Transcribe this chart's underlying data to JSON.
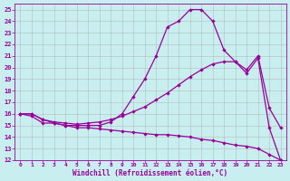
{
  "xlabel": "Windchill (Refroidissement éolien,°C)",
  "background_color": "#c8eef0",
  "grid_color": "#b0b0b0",
  "line_color": "#990099",
  "xlim": [
    -0.5,
    23.5
  ],
  "ylim": [
    12,
    25.5
  ],
  "xticks": [
    0,
    1,
    2,
    3,
    4,
    5,
    6,
    7,
    8,
    9,
    10,
    11,
    12,
    13,
    14,
    15,
    16,
    17,
    18,
    19,
    20,
    21,
    22,
    23
  ],
  "yticks": [
    12,
    13,
    14,
    15,
    16,
    17,
    18,
    19,
    20,
    21,
    22,
    23,
    24,
    25
  ],
  "line1_x": [
    0,
    1,
    2,
    3,
    4,
    5,
    6,
    7,
    8,
    9,
    10,
    11,
    12,
    13,
    14,
    15,
    16,
    17,
    18,
    19,
    20,
    21,
    22,
    23
  ],
  "line1_y": [
    16.0,
    15.8,
    15.2,
    15.2,
    15.0,
    15.0,
    15.0,
    15.0,
    15.3,
    16.0,
    17.5,
    19.0,
    21.0,
    23.5,
    24.0,
    25.0,
    25.0,
    24.0,
    21.5,
    20.5,
    19.5,
    20.8,
    14.8,
    12.0
  ],
  "line2_x": [
    0,
    1,
    2,
    3,
    4,
    5,
    6,
    7,
    8,
    9,
    10,
    11,
    12,
    13,
    14,
    15,
    16,
    17,
    18,
    19,
    20,
    21,
    22,
    23
  ],
  "line2_y": [
    16.0,
    16.0,
    15.5,
    15.3,
    15.2,
    15.1,
    15.2,
    15.3,
    15.5,
    15.8,
    16.2,
    16.6,
    17.2,
    17.8,
    18.5,
    19.2,
    19.8,
    20.3,
    20.5,
    20.5,
    19.8,
    21.0,
    16.5,
    14.8
  ],
  "line3_x": [
    0,
    1,
    2,
    3,
    4,
    5,
    6,
    7,
    8,
    9,
    10,
    11,
    12,
    13,
    14,
    15,
    16,
    17,
    18,
    19,
    20,
    21,
    22,
    23
  ],
  "line3_y": [
    16.0,
    16.0,
    15.5,
    15.2,
    15.0,
    14.8,
    14.8,
    14.7,
    14.6,
    14.5,
    14.4,
    14.3,
    14.2,
    14.2,
    14.1,
    14.0,
    13.8,
    13.7,
    13.5,
    13.3,
    13.2,
    13.0,
    12.5,
    12.0
  ]
}
